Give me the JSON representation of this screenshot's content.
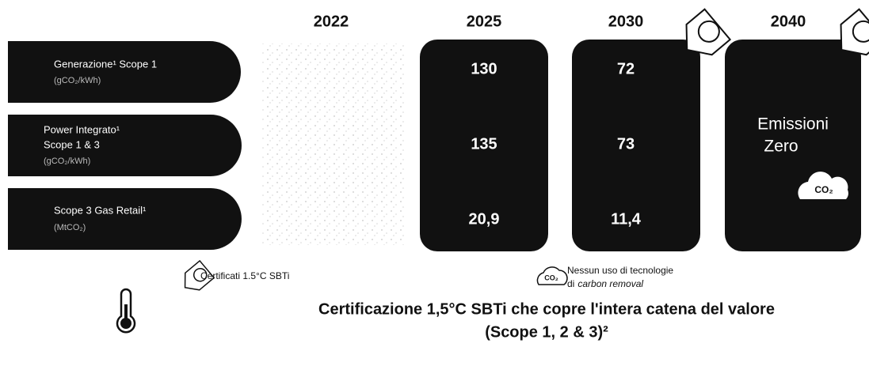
{
  "header": {
    "years": [
      "2022",
      "2025",
      "2030",
      "2040"
    ]
  },
  "rows": [
    {
      "label_lines": [
        "Generazione¹ Scope 1"
      ],
      "unit": "(gCO₂/kWh)",
      "v2025": "130",
      "v2030": "72"
    },
    {
      "label_lines": [
        "Power Integrato¹",
        "Scope 1 & 3"
      ],
      "unit": "(gCO₂/kWh)",
      "v2025": "135",
      "v2030": "73"
    },
    {
      "label_lines": [
        "Scope 3 Gas Retail¹"
      ],
      "unit": "(MtCO₂)",
      "v2025": "20,9",
      "v2030": "11,4"
    }
  ],
  "target_2040": {
    "lines": [
      "Emissioni",
      "Zero"
    ],
    "badge": "CO₂"
  },
  "legend": [
    {
      "text": "Certificati 1.5°C SBTi"
    },
    {
      "line1": "Nessun uso di tecnologie",
      "line2_prefix": "di",
      "line2_italic": "carbon removal",
      "badge": "CO₂"
    }
  ],
  "footer": {
    "lines": [
      "Certificazione 1,5°C SBTi che copre l'intera catena del valore",
      "(Scope 1, 2 & 3)²"
    ]
  }
}
